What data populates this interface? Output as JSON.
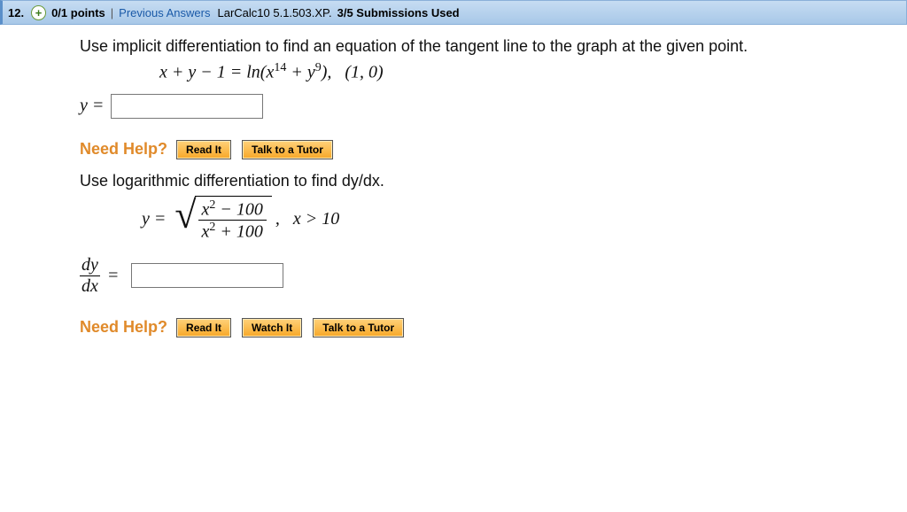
{
  "header": {
    "question_number": "12.",
    "points": "0/1 points",
    "separator": "|",
    "previous_answers": "Previous Answers",
    "assignment_code": "LarCalc10 5.1.503.XP.",
    "submissions": "3/5 Submissions Used"
  },
  "problem1": {
    "instruction": "Use implicit differentiation to find an equation of the tangent line to the graph at the given point.",
    "equation_html": "x + y − 1 = ln(x<span class='sup'>14</span> + y<span class='sup'>9</span>),&nbsp;&nbsp;&nbsp;(1, 0)",
    "answer_label": "y ="
  },
  "help1": {
    "label": "Need Help?",
    "read": "Read It",
    "tutor": "Talk to a Tutor"
  },
  "problem2": {
    "instruction": "Use logarithmic differentiation to find dy/dx.",
    "lhs": "y =",
    "numerator_html": "x<span class='sup'>2</span> − 100",
    "denominator_html": "x<span class='sup'>2</span> + 100",
    "condition": ",&nbsp;&nbsp;&nbsp;x > 10",
    "dy": "dy",
    "dx": "dx",
    "equals": "="
  },
  "help2": {
    "label": "Need Help?",
    "read": "Read It",
    "watch": "Watch It",
    "tutor": "Talk to a Tutor"
  },
  "colors": {
    "header_bg_top": "#c6dcf2",
    "header_bg_bottom": "#a8c8e8",
    "link": "#1a5aa8",
    "need_help": "#e08a2a",
    "button_top": "#ffd27a",
    "button_bottom": "#f7a728"
  }
}
